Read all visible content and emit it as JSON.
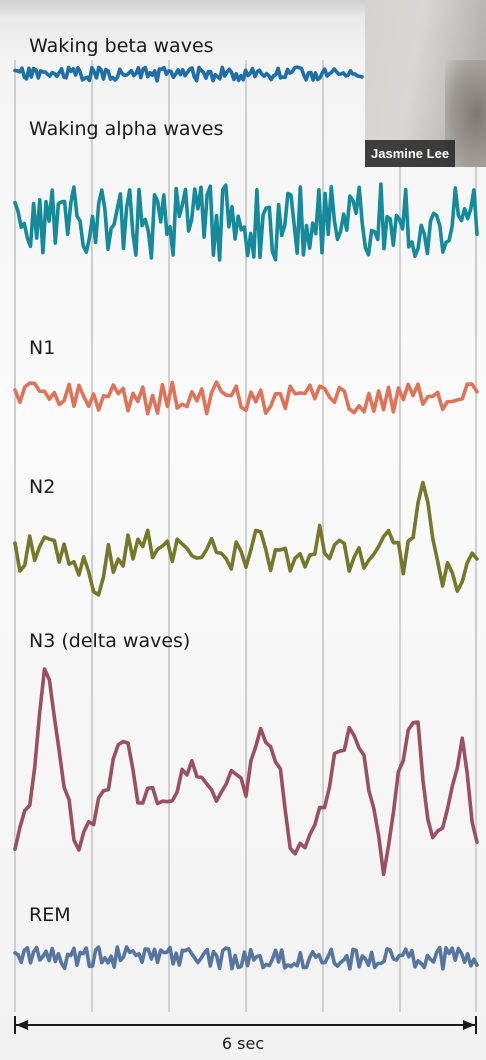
{
  "figure": {
    "traces": [
      {
        "label": "Waking beta waves",
        "color": "#1e6fa8"
      },
      {
        "label": "Waking alpha waves",
        "color": "#148a9b"
      },
      {
        "label": "N1",
        "color": "#dd7358"
      },
      {
        "label": "N2",
        "color": "#73782b"
      },
      {
        "label": "N3 (delta waves)",
        "color": "#9b4f63"
      },
      {
        "label": "REM",
        "color": "#5676a0"
      }
    ],
    "time_scale_label": "6 sec"
  },
  "video_call": {
    "participant_name": "Jasmine Lee"
  }
}
